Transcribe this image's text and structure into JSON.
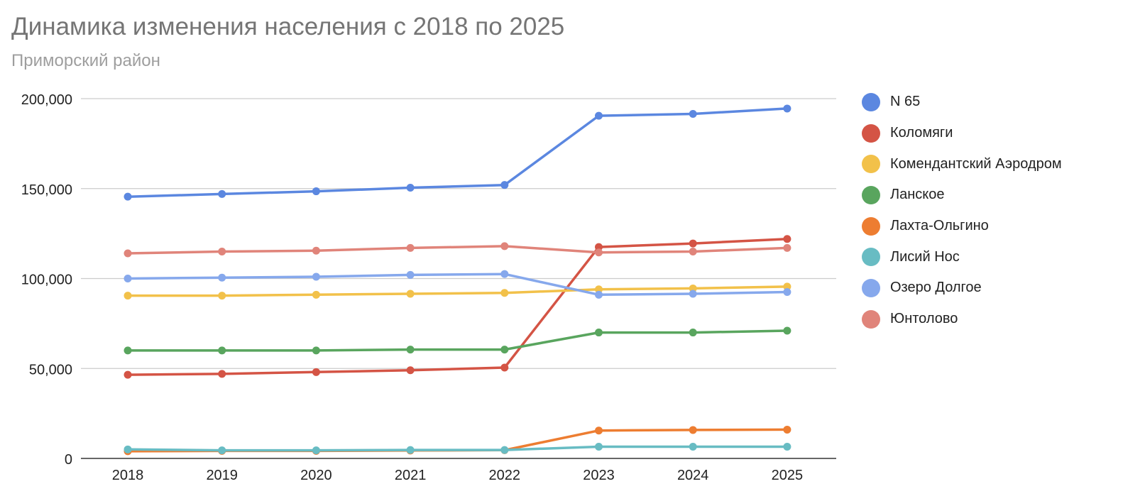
{
  "chart_data": {
    "type": "line",
    "title": "Динамика изменения населения с 2018 по 2025",
    "subtitle": "Приморский район",
    "xlabel": "",
    "ylabel": "",
    "x": [
      "2018",
      "2019",
      "2020",
      "2021",
      "2022",
      "2023",
      "2024",
      "2025"
    ],
    "ylim": [
      0,
      200000
    ],
    "yticks": [
      0,
      50000,
      100000,
      150000,
      200000
    ],
    "ytick_labels": [
      "0",
      "50,000",
      "100,000",
      "150,000",
      "200,000"
    ],
    "grid": true,
    "legend_position": "right",
    "series": [
      {
        "name": "N 65",
        "color": "#5b87e0",
        "values": [
          145500,
          147000,
          148500,
          150500,
          152000,
          190500,
          191500,
          194500
        ]
      },
      {
        "name": "Коломяги",
        "color": "#d45445",
        "values": [
          46500,
          47000,
          48000,
          49000,
          50500,
          117500,
          119500,
          122000
        ]
      },
      {
        "name": "Комендантский Аэродром",
        "color": "#f2c14a",
        "values": [
          90500,
          90500,
          91000,
          91500,
          92000,
          94000,
          94500,
          95500
        ]
      },
      {
        "name": "Ланское",
        "color": "#59a55e",
        "values": [
          60000,
          60000,
          60000,
          60500,
          60500,
          70000,
          70000,
          71000
        ]
      },
      {
        "name": "Лахта-Ольгино",
        "color": "#ed7d31",
        "values": [
          4000,
          4200,
          4200,
          4400,
          4600,
          15500,
          15800,
          16000
        ]
      },
      {
        "name": "Лисий Нос",
        "color": "#68bcc3",
        "values": [
          5000,
          4500,
          4500,
          4700,
          4700,
          6500,
          6500,
          6500
        ]
      },
      {
        "name": "Озеро Долгое",
        "color": "#86a8ec",
        "values": [
          100000,
          100500,
          101000,
          102000,
          102500,
          91000,
          91500,
          92500
        ]
      },
      {
        "name": "Юнтолово",
        "color": "#e0847a",
        "values": [
          114000,
          115000,
          115500,
          117000,
          118000,
          114500,
          115000,
          117000
        ]
      }
    ]
  }
}
